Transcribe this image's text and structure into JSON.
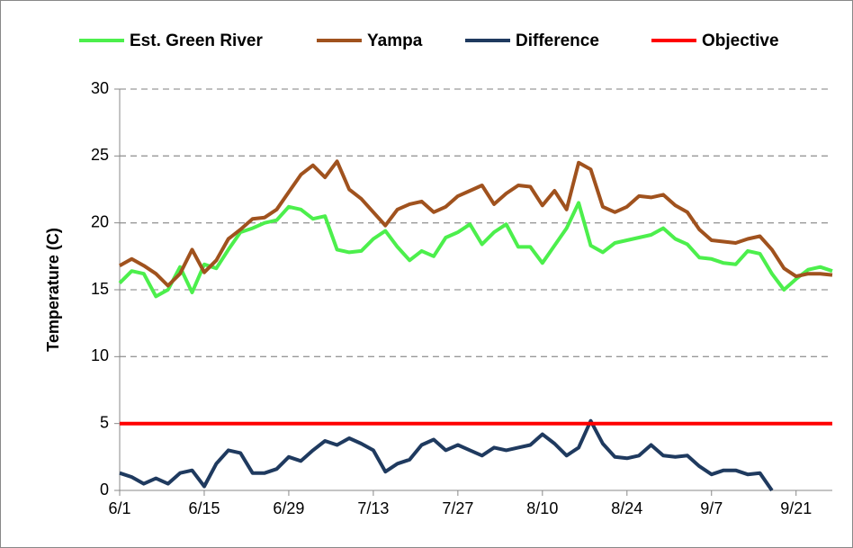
{
  "chart_data": {
    "type": "line",
    "ylabel": "Temperature (C)",
    "x": [
      0,
      2,
      4,
      6,
      8,
      10,
      12,
      14,
      16,
      18,
      20,
      22,
      24,
      26,
      28,
      30,
      32,
      34,
      36,
      38,
      40,
      42,
      44,
      46,
      48,
      50,
      52,
      54,
      56,
      58,
      60,
      62,
      64,
      66,
      68,
      70,
      72,
      74,
      76,
      78,
      80,
      82,
      84,
      86,
      88,
      90,
      92,
      94,
      96,
      98,
      100,
      102,
      104,
      106,
      108,
      110,
      112,
      114,
      116,
      118
    ],
    "series": [
      {
        "name": "Est. Green River",
        "color": "#4cef4c",
        "values": [
          15.5,
          16.4,
          16.2,
          14.5,
          15.0,
          16.7,
          14.8,
          16.9,
          16.6,
          18.0,
          19.3,
          19.6,
          20.0,
          20.2,
          21.2,
          21.0,
          20.3,
          20.5,
          18.0,
          17.8,
          17.9,
          18.8,
          19.4,
          18.2,
          17.2,
          17.9,
          17.5,
          18.9,
          19.3,
          19.9,
          18.4,
          19.3,
          19.9,
          18.2,
          18.2,
          17.0,
          18.3,
          19.6,
          21.5,
          18.3,
          17.8,
          18.5,
          18.7,
          18.9,
          19.1,
          19.6,
          18.8,
          18.4,
          17.4,
          17.3,
          17.0,
          16.9,
          17.9,
          17.7,
          16.2,
          15.0,
          15.8,
          16.5,
          16.7,
          16.4
        ]
      },
      {
        "name": "Yampa",
        "color": "#a0521e",
        "values": [
          16.8,
          17.3,
          16.8,
          16.2,
          15.3,
          16.2,
          18.0,
          16.3,
          17.2,
          18.8,
          19.5,
          20.3,
          20.4,
          21.0,
          22.3,
          23.6,
          24.3,
          23.4,
          24.6,
          22.5,
          21.8,
          20.8,
          19.8,
          21.0,
          21.4,
          21.6,
          20.8,
          21.2,
          22.0,
          22.4,
          22.8,
          21.4,
          22.2,
          22.8,
          22.7,
          21.3,
          22.4,
          21.0,
          24.5,
          24.0,
          21.2,
          20.8,
          21.2,
          22.0,
          21.9,
          22.1,
          21.3,
          20.8,
          19.5,
          18.7,
          18.6,
          18.5,
          18.8,
          19.0,
          18.0,
          16.6,
          16.0,
          16.2,
          16.2,
          16.1
        ]
      },
      {
        "name": "Difference",
        "color": "#1f3a5f",
        "values": [
          1.3,
          1.0,
          0.5,
          0.9,
          0.5,
          1.3,
          1.5,
          0.3,
          2.0,
          3.0,
          2.8,
          1.3,
          1.3,
          1.6,
          2.5,
          2.2,
          3.0,
          3.7,
          3.4,
          3.9,
          3.5,
          3.0,
          1.4,
          2.0,
          2.3,
          3.4,
          3.8,
          3.0,
          3.4,
          3.0,
          2.6,
          3.2,
          3.0,
          3.2,
          3.4,
          4.2,
          3.5,
          2.6,
          3.2,
          5.2,
          3.5,
          2.5,
          2.4,
          2.6,
          3.4,
          2.6,
          2.5,
          2.6,
          1.8,
          1.2,
          1.5,
          1.5,
          1.2,
          1.3,
          0,
          null,
          null,
          null,
          null,
          null
        ]
      },
      {
        "name": "Objective",
        "color": "#ff0000",
        "values": [
          5,
          5,
          5,
          5,
          5,
          5,
          5,
          5,
          5,
          5,
          5,
          5,
          5,
          5,
          5,
          5,
          5,
          5,
          5,
          5,
          5,
          5,
          5,
          5,
          5,
          5,
          5,
          5,
          5,
          5,
          5,
          5,
          5,
          5,
          5,
          5,
          5,
          5,
          5,
          5,
          5,
          5,
          5,
          5,
          5,
          5,
          5,
          5,
          5,
          5,
          5,
          5,
          5,
          5,
          5,
          5,
          5,
          5,
          5,
          5
        ]
      }
    ],
    "xlim": [
      0,
      118
    ],
    "xticks": [
      {
        "value": 0,
        "label": "6/1"
      },
      {
        "value": 14,
        "label": "6/15"
      },
      {
        "value": 28,
        "label": "6/29"
      },
      {
        "value": 42,
        "label": "7/13"
      },
      {
        "value": 56,
        "label": "7/27"
      },
      {
        "value": 70,
        "label": "8/10"
      },
      {
        "value": 84,
        "label": "8/24"
      },
      {
        "value": 98,
        "label": "9/7"
      },
      {
        "value": 112,
        "label": "9/21"
      }
    ],
    "ylim": [
      0,
      30
    ],
    "yticks": [
      0,
      5,
      10,
      15,
      20,
      25,
      30
    ],
    "grid": true,
    "legend": "top"
  }
}
